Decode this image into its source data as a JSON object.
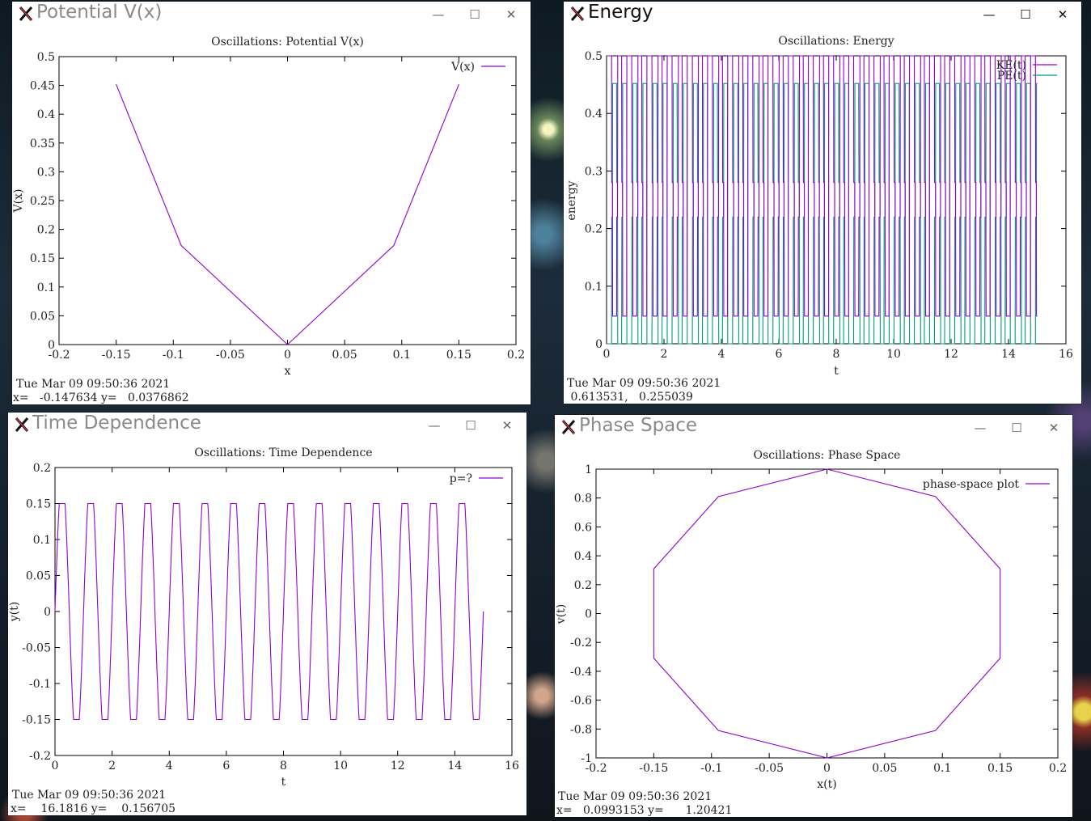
{
  "windows": [
    {
      "id": "potential",
      "title": "Potential V(x)",
      "active": false,
      "status_date": "Tue Mar 09 09:50:36 2021",
      "status_coords": "x=   -0.147634 y=   0.0376862",
      "chart_data": {
        "type": "line",
        "title": "Oscillations: Potential V(x)",
        "xlabel": "x",
        "ylabel": "V(x)",
        "xlim": [
          -0.2,
          0.2
        ],
        "ylim": [
          0,
          0.5
        ],
        "xticks": [
          "-0.2",
          "-0.15",
          "-0.1",
          "-0.05",
          "0",
          "0.05",
          "0.1",
          "0.15",
          "0.2"
        ],
        "yticks": [
          "0",
          "0.05",
          "0.1",
          "0.15",
          "0.2",
          "0.25",
          "0.3",
          "0.35",
          "0.4",
          "0.45",
          "0.5"
        ],
        "series": [
          {
            "name": "V(x)",
            "color": "#9400d3",
            "x": [
              -0.15,
              -0.093,
              0,
              0.093,
              0.15
            ],
            "y": [
              0.452,
              0.172,
              0.0,
              0.172,
              0.452
            ]
          }
        ]
      }
    },
    {
      "id": "energy",
      "title": "Energy",
      "active": true,
      "status_date": "Tue Mar 09 09:50:36 2021",
      "status_coords": " 0.613531,   0.255039",
      "chart_data": {
        "type": "line",
        "title": "Oscillations: Energy",
        "xlabel": "t",
        "ylabel": "energy",
        "xlim": [
          0,
          16
        ],
        "ylim": [
          0,
          0.5
        ],
        "xticks": [
          "0",
          "2",
          "4",
          "6",
          "8",
          "10",
          "12",
          "14",
          "16"
        ],
        "yticks": [
          "0",
          "0.1",
          "0.2",
          "0.3",
          "0.4",
          "0.5"
        ],
        "period": 0.703,
        "t_end": 15.0,
        "levels": [
          0.0,
          0.048,
          0.22,
          0.28,
          0.452,
          0.5
        ],
        "series": [
          {
            "name": "KE(t)",
            "color": "#9400d3"
          },
          {
            "name": "PE(t)",
            "color": "#009e73"
          }
        ]
      }
    },
    {
      "id": "time",
      "title": "Time Dependence",
      "active": false,
      "status_date": "Tue Mar 09 09:50:36 2021",
      "status_coords": "x=    16.1816 y=    0.156705",
      "chart_data": {
        "type": "line",
        "title": "Oscillations: Time Dependence",
        "xlabel": "t",
        "ylabel": "y(t)",
        "xlim": [
          0,
          16
        ],
        "ylim": [
          -0.2,
          0.2
        ],
        "xticks": [
          "0",
          "2",
          "4",
          "6",
          "8",
          "10",
          "12",
          "14",
          "16"
        ],
        "yticks": [
          "-0.2",
          "-0.15",
          "-0.1",
          "-0.05",
          "0",
          "0.05",
          "0.1",
          "0.15",
          "0.2"
        ],
        "period": 1.0,
        "amplitude": 0.15,
        "t_end": 15.0,
        "series": [
          {
            "name": "p=?",
            "color": "#9400d3"
          }
        ]
      }
    },
    {
      "id": "phase",
      "title": "Phase Space",
      "active": false,
      "status_date": "Tue Mar 09 09:50:36 2021",
      "status_coords": "x=   0.0993153 y=      1.20421",
      "chart_data": {
        "type": "line",
        "title": "Oscillations: Phase Space",
        "xlabel": "x(t)",
        "ylabel": "v(t)",
        "xlim": [
          -0.2,
          0.2
        ],
        "ylim": [
          -1,
          1
        ],
        "xticks": [
          "-0.2",
          "-0.15",
          "-0.1",
          "-0.05",
          "0",
          "0.05",
          "0.1",
          "0.15",
          "0.2"
        ],
        "yticks": [
          "-1",
          "-0.8",
          "-0.6",
          "-0.4",
          "-0.2",
          "0",
          "0.2",
          "0.4",
          "0.6",
          "0.8",
          "1"
        ],
        "series": [
          {
            "name": "phase-space plot",
            "color": "#9400d3",
            "x": [
              0,
              0.094,
              0.15,
              0.15,
              0.094,
              0,
              -0.094,
              -0.15,
              -0.15,
              -0.094,
              0
            ],
            "y": [
              1,
              0.81,
              0.31,
              -0.31,
              -0.81,
              -1,
              -0.81,
              -0.31,
              0.31,
              0.81,
              1
            ]
          }
        ]
      }
    }
  ]
}
